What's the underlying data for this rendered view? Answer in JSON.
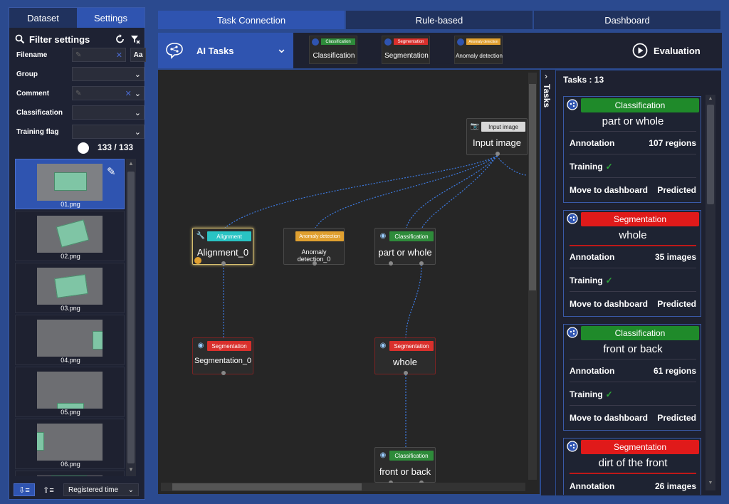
{
  "left_panel": {
    "tabs": [
      "Dataset",
      "Settings"
    ],
    "filter_title": "Filter settings",
    "filters": [
      {
        "label": "Filename"
      },
      {
        "label": "Group"
      },
      {
        "label": "Comment"
      },
      {
        "label": "Classification"
      },
      {
        "label": "Training flag"
      }
    ],
    "filename_case_btn": "Aa",
    "count": "133 / 133",
    "thumbnails": [
      "01.png",
      "02.png",
      "03.png",
      "04.png",
      "05.png",
      "06.png"
    ],
    "sort_select": "Registered time"
  },
  "top_tabs": [
    "Task Connection",
    "Rule-based",
    "Dashboard"
  ],
  "toolbar": {
    "ai_tasks_label": "AI Tasks",
    "palette": [
      {
        "badge": "Classification",
        "label": "Classification",
        "color": "#2e8b3a"
      },
      {
        "badge": "Segmentation",
        "label": "Segmentation",
        "color": "#d9302c"
      },
      {
        "badge": "Anomaly detection",
        "label": "Anomaly detection",
        "color": "#e0a030"
      }
    ],
    "evaluation_label": "Evaluation"
  },
  "canvas": {
    "nodes": [
      {
        "id": "input",
        "badge": "Input image",
        "title": "Input image",
        "badge_color": "#d8d8d8"
      },
      {
        "id": "align",
        "badge": "Alignment",
        "title": "Alignment_0",
        "badge_color": "#29c4c4"
      },
      {
        "id": "anom",
        "badge": "Anomaly detection",
        "title": "Anomaly detection_0",
        "badge_color": "#e0a030"
      },
      {
        "id": "cls1",
        "badge": "Classification",
        "title": "part or whole",
        "badge_color": "#2e8b3a"
      },
      {
        "id": "seg0",
        "badge": "Segmentation",
        "title": "Segmentation_0",
        "badge_color": "#d9302c"
      },
      {
        "id": "seg1",
        "badge": "Segmentation",
        "title": "whole",
        "badge_color": "#d9302c"
      },
      {
        "id": "cls2",
        "badge": "Classification",
        "title": "front or back",
        "badge_color": "#2e8b3a"
      }
    ]
  },
  "tasks_side_tab": "Tasks",
  "tasks_panel": {
    "header": "Tasks : 13",
    "cards": [
      {
        "type": "Classification",
        "color": "#1f8a2a",
        "title": "part or whole",
        "annotation_label": "Annotation",
        "annotation_value": "107 regions",
        "training_label": "Training",
        "move_label": "Move to dashboard",
        "move_value": "Predicted"
      },
      {
        "type": "Segmentation",
        "color": "#e01a1a",
        "title": "whole",
        "annotation_label": "Annotation",
        "annotation_value": "35 images",
        "training_label": "Training",
        "move_label": "Move to dashboard",
        "move_value": "Predicted"
      },
      {
        "type": "Classification",
        "color": "#1f8a2a",
        "title": "front or back",
        "annotation_label": "Annotation",
        "annotation_value": "61 regions",
        "training_label": "Training",
        "move_label": "Move to dashboard",
        "move_value": "Predicted"
      },
      {
        "type": "Segmentation",
        "color": "#e01a1a",
        "title": "dirt of the front",
        "annotation_label": "Annotation",
        "annotation_value": "26 images"
      }
    ]
  }
}
